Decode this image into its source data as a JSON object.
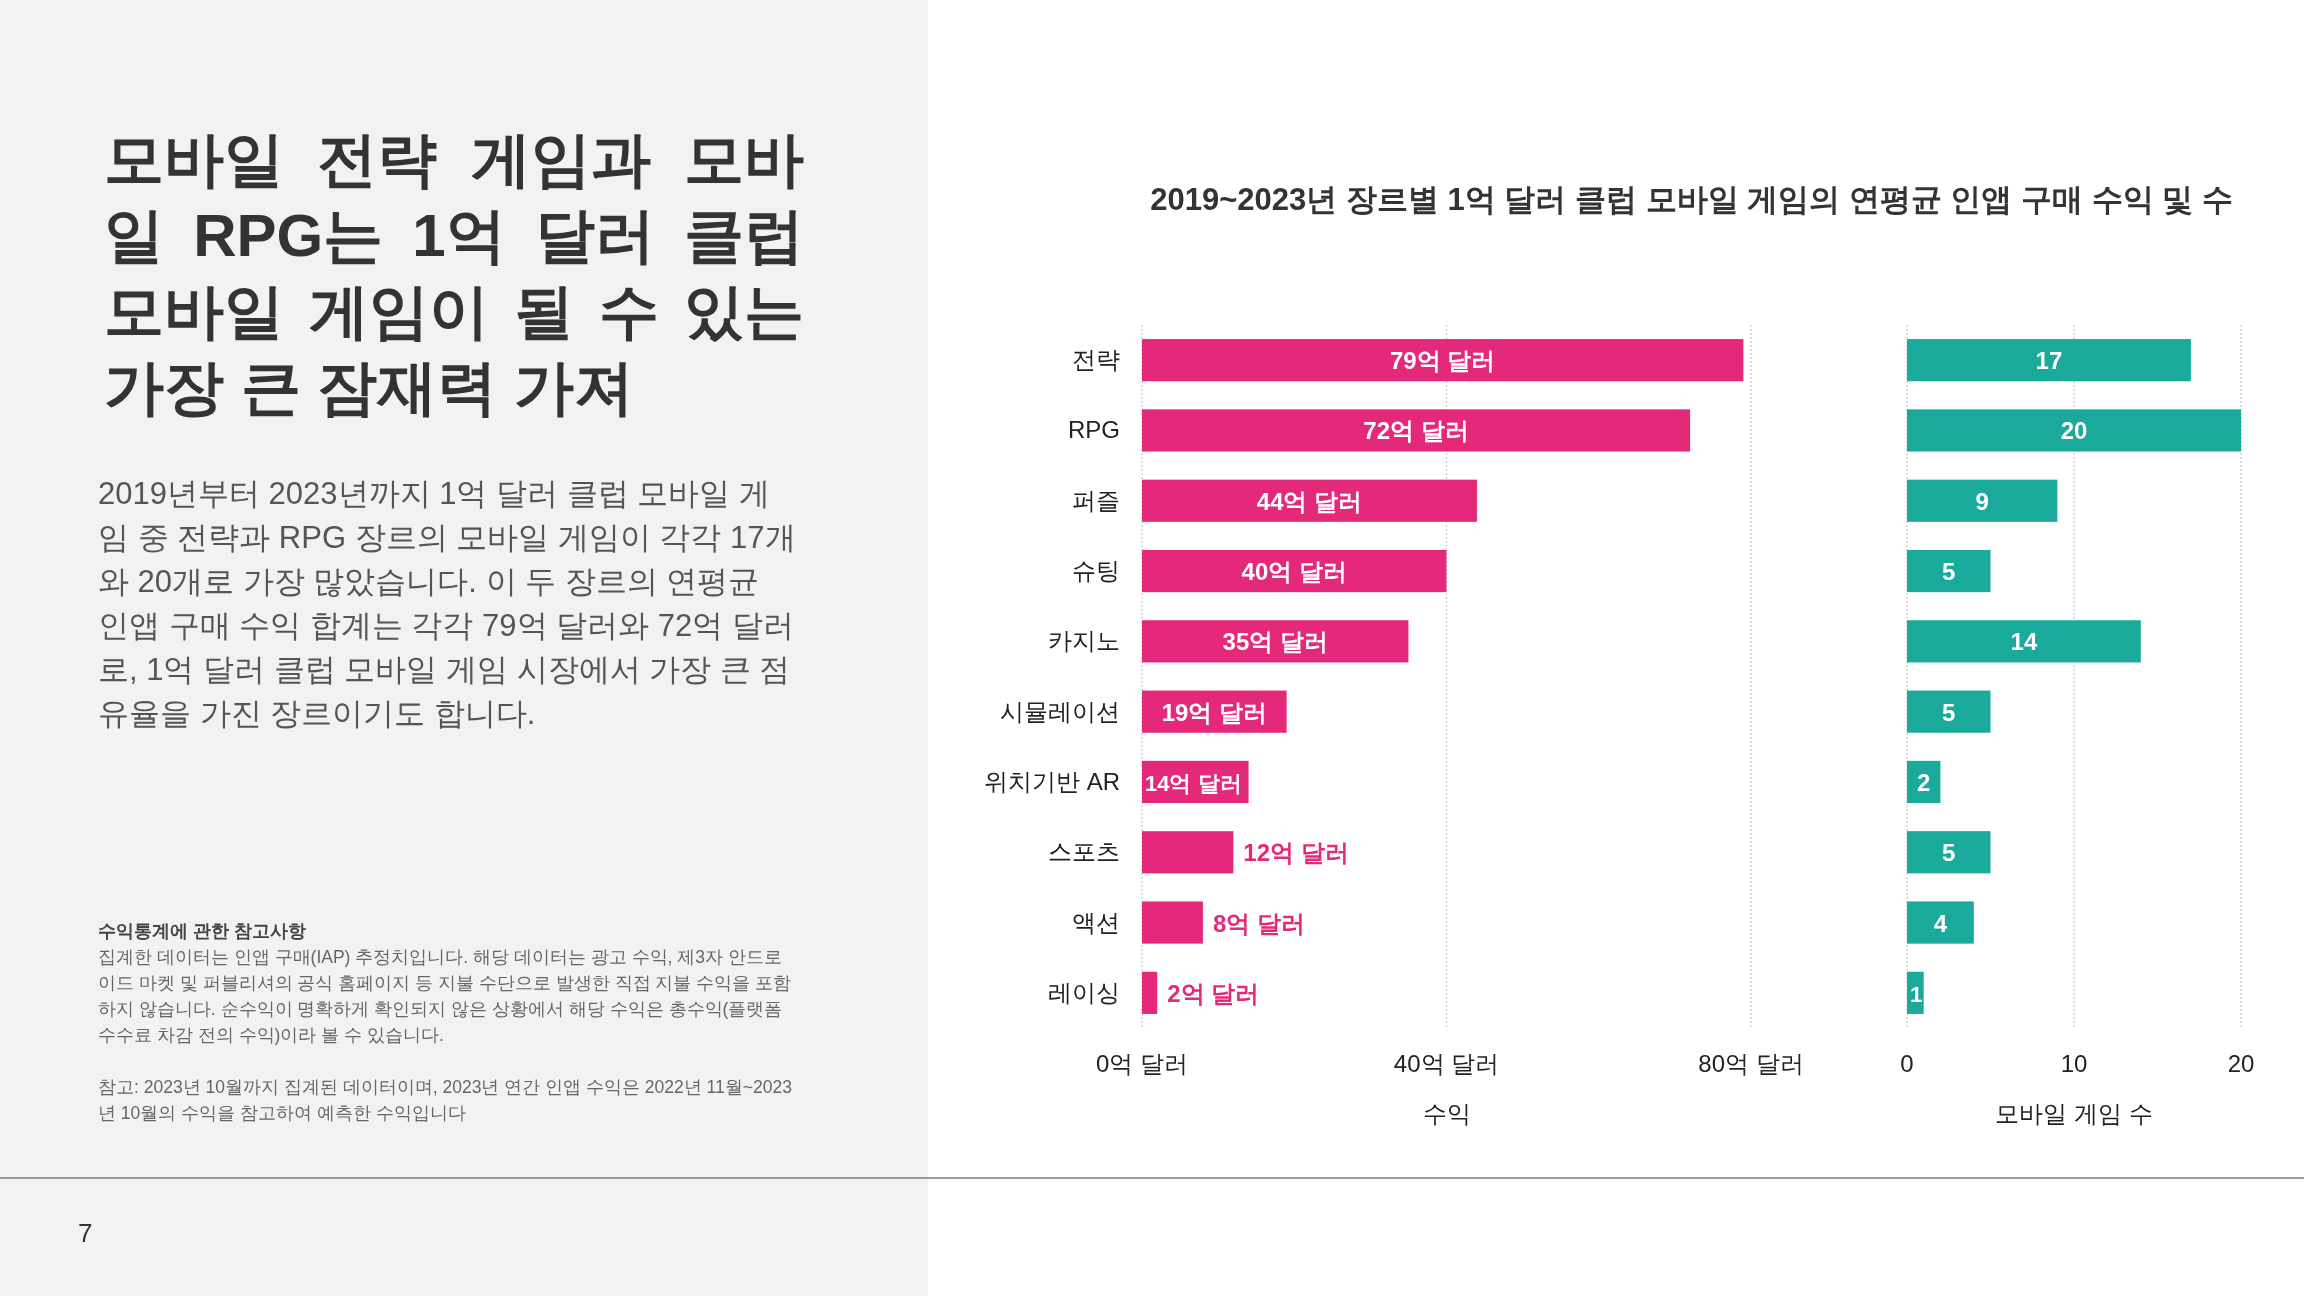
{
  "chart_data": [
    {
      "type": "bar",
      "orientation": "horizontal",
      "title": "2019~2023년 장르별 1억 달러 클럽 모바일 게임의 연평균 인앱 구매 수익 및 수",
      "xlabel": "수익",
      "categories": [
        "전략",
        "RPG",
        "퍼즐",
        "슈팅",
        "카지노",
        "시뮬레이션",
        "위치기반 AR",
        "스포츠",
        "액션",
        "레이싱"
      ],
      "values": [
        79,
        72,
        44,
        40,
        35,
        19,
        14,
        12,
        8,
        2
      ],
      "value_labels": [
        "79억 달러",
        "72억 달러",
        "44억 달러",
        "40억 달러",
        "35억 달러",
        "19억 달러",
        "14억 달러",
        "12억 달러",
        "8억 달러",
        "2억 달러"
      ],
      "color": "#e4297a",
      "xlim": [
        0,
        80
      ],
      "xticks": [
        {
          "value": 0,
          "label": "0억 달러"
        },
        {
          "value": 40,
          "label": "40억 달러"
        },
        {
          "value": 80,
          "label": "80억 달러"
        }
      ],
      "grid": "x",
      "annotations": [
        "모바일 전략 게임과 모바일 RPG는 1억 달러 클럽 모바일 게임이 될 수 있는 가장 큰 잠재력 가져",
        "2019년부터 2023년까지 1억 달러 클럽 모바일 게임 중 전략과 RPG 장르의 모바일 게임이 각각 17개와 20개로 가장 많았습니다. 이 두 장르의 연평균 인앱 구매 수익 합계는 각각 79억 달러와 72억 달러로, 1억 달러 클럽 모바일 게임 시장에서 가장 큰 점유율을 가진 장르이기도 합니다.",
        "수익통계에 관한 참고사항",
        "집계한 데이터는 인앱 구매(IAP) 추정치입니다. 해당 데이터는 광고 수익, 제3자 안드로이드 마켓 및 퍼블리셔의 공식 홈페이지 등 지불 수단으로 발생한 직접 지불 수익을 포함하지 않습니다. 순수익이 명확하게 확인되지 않은 상황에서 해당 수익은 총수익(플랫폼 수수료 차감 전의 수익)이라 볼 수 있습니다.",
        "참고: 2023년 10월까지 집계된 데이터이며, 2023년 연간 인앱 수익은 2022년 11월~2023년 10월의 수익을 참고하여 예측한 수익입니다",
        "7"
      ]
    },
    {
      "type": "bar",
      "orientation": "horizontal",
      "xlabel": "모바일 게임 수",
      "categories": [
        null,
        null,
        null,
        null,
        null,
        null,
        null,
        null,
        null,
        null
      ],
      "values": [
        17,
        20,
        9,
        5,
        14,
        5,
        2,
        5,
        4,
        1
      ],
      "data_labels": true,
      "color": "#1aaa9b",
      "xlim": [
        0,
        20
      ],
      "xticks": [
        0,
        10,
        20
      ],
      "grid": "x",
      "tick_labels": "x"
    }
  ]
}
